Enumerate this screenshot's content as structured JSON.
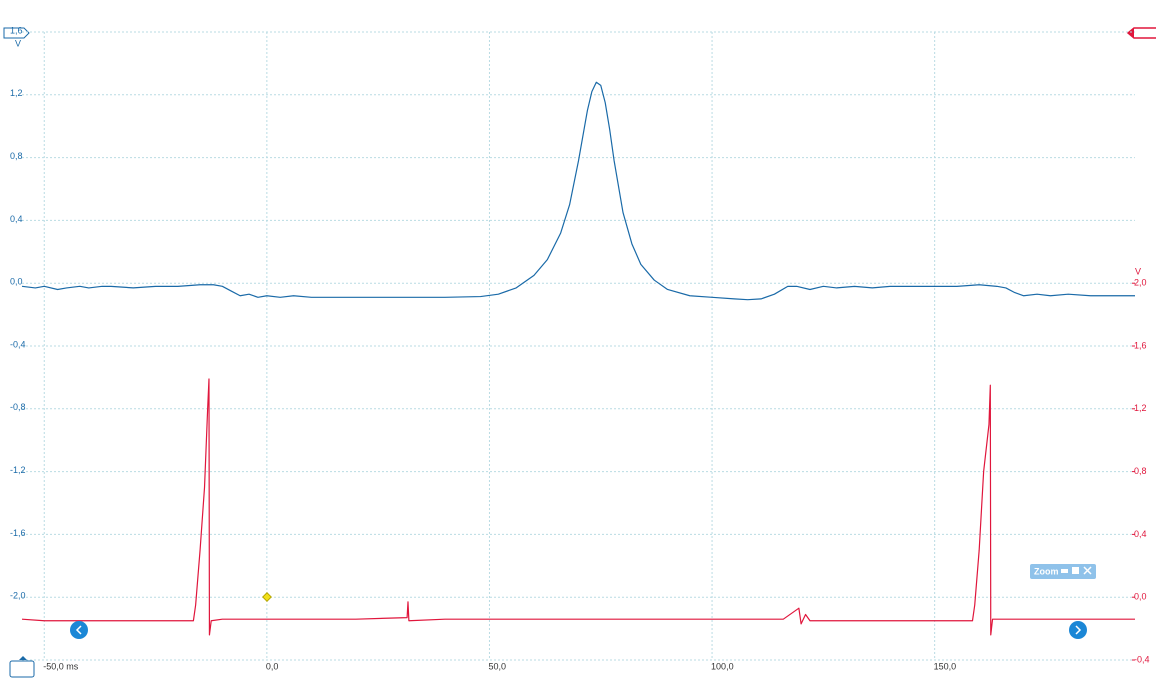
{
  "chart_data": {
    "type": "line",
    "y_unit": "V",
    "y2_unit": "V",
    "xlim": [
      -55,
      195
    ],
    "xticks": [
      {
        "value": -50,
        "label": "-50,0 ms"
      },
      {
        "value": 0,
        "label": "0,0"
      },
      {
        "value": 50,
        "label": "50,0"
      },
      {
        "value": 100,
        "label": "100,0"
      },
      {
        "value": 150,
        "label": "150,0"
      }
    ],
    "ylim": [
      -2.4,
      1.6
    ],
    "yticks": [
      {
        "value": 1.6,
        "label": "1,6"
      },
      {
        "value": 1.2,
        "label": "1,2"
      },
      {
        "value": 0.8,
        "label": "0,8"
      },
      {
        "value": 0.4,
        "label": "0,4"
      },
      {
        "value": 0,
        "label": "0,0"
      },
      {
        "value": -0.4,
        "label": "-0,4"
      },
      {
        "value": -0.8,
        "label": "-0,8"
      },
      {
        "value": -1.2,
        "label": "-1,2"
      },
      {
        "value": -1.6,
        "label": "-1,6"
      },
      {
        "value": -2.0,
        "label": "-2,0"
      }
    ],
    "y2lim": [
      -0.4,
      3.6
    ],
    "y2ticks": [
      {
        "value": 2.0,
        "label": "2,0"
      },
      {
        "value": 1.6,
        "label": "1,6"
      },
      {
        "value": 1.2,
        "label": "1,2"
      },
      {
        "value": 0.8,
        "label": "0,8"
      },
      {
        "value": 0.4,
        "label": "0,4"
      },
      {
        "value": 0,
        "label": "0,0"
      },
      {
        "value": -0.4,
        "label": "-0,4"
      }
    ],
    "grid": true,
    "series": [
      {
        "color": "#1a6aa8",
        "x": [
          -55,
          -52,
          -50,
          -47,
          -45,
          -42,
          -40,
          -37,
          -35,
          -30,
          -25,
          -20,
          -15,
          -12,
          -10,
          -8,
          -6,
          -4,
          -2,
          0,
          3,
          6,
          10,
          20,
          30,
          40,
          48,
          52,
          56,
          60,
          63,
          66,
          68,
          70,
          72,
          73,
          74,
          75,
          76,
          77,
          78,
          80,
          82,
          84,
          87,
          90,
          95,
          100,
          105,
          108,
          111,
          114,
          117,
          119,
          122,
          125,
          128,
          132,
          136,
          140,
          145,
          150,
          155,
          160,
          164,
          166,
          168,
          170,
          173,
          176,
          180,
          185,
          190,
          195
        ],
        "values": [
          -0.02,
          -0.03,
          -0.02,
          -0.04,
          -0.03,
          -0.02,
          -0.03,
          -0.02,
          -0.02,
          -0.03,
          -0.02,
          -0.02,
          -0.01,
          -0.01,
          -0.02,
          -0.05,
          -0.08,
          -0.07,
          -0.09,
          -0.08,
          -0.09,
          -0.08,
          -0.09,
          -0.09,
          -0.09,
          -0.09,
          -0.085,
          -0.07,
          -0.03,
          0.05,
          0.15,
          0.32,
          0.5,
          0.78,
          1.1,
          1.22,
          1.28,
          1.26,
          1.15,
          0.98,
          0.78,
          0.45,
          0.25,
          0.12,
          0.02,
          -0.04,
          -0.08,
          -0.09,
          -0.1,
          -0.105,
          -0.1,
          -0.07,
          -0.02,
          -0.02,
          -0.04,
          -0.02,
          -0.03,
          -0.02,
          -0.03,
          -0.02,
          -0.02,
          -0.02,
          -0.02,
          -0.01,
          -0.02,
          -0.03,
          -0.06,
          -0.08,
          -0.07,
          -0.08,
          -0.07,
          -0.08,
          -0.08,
          -0.08
        ]
      },
      {
        "color": "#e0163c",
        "axis": "y2",
        "x": [
          -55,
          -50,
          -40,
          -30,
          -20,
          -16.5,
          -16,
          -15,
          -14,
          -13.3,
          -13,
          -12.9,
          -12.5,
          -10,
          0,
          20,
          31.5,
          31.7,
          31.9,
          40,
          60,
          80,
          100,
          116,
          119.5,
          120,
          121,
          122,
          130,
          150,
          158.5,
          159,
          160,
          161,
          162.2,
          162.5,
          162.6,
          163,
          170,
          185,
          195
        ],
        "values": [
          -0.14,
          -0.15,
          -0.15,
          -0.15,
          -0.15,
          -0.15,
          -0.05,
          0.3,
          0.7,
          1.2,
          1.39,
          -0.24,
          -0.15,
          -0.14,
          -0.14,
          -0.14,
          -0.13,
          -0.03,
          -0.15,
          -0.14,
          -0.14,
          -0.14,
          -0.14,
          -0.14,
          -0.07,
          -0.17,
          -0.11,
          -0.15,
          -0.15,
          -0.15,
          -0.15,
          -0.05,
          0.3,
          0.8,
          1.1,
          1.35,
          -0.24,
          -0.14,
          -0.14,
          -0.14,
          -0.14
        ]
      }
    ]
  },
  "controls": {
    "zoom_label": "Zoom"
  }
}
